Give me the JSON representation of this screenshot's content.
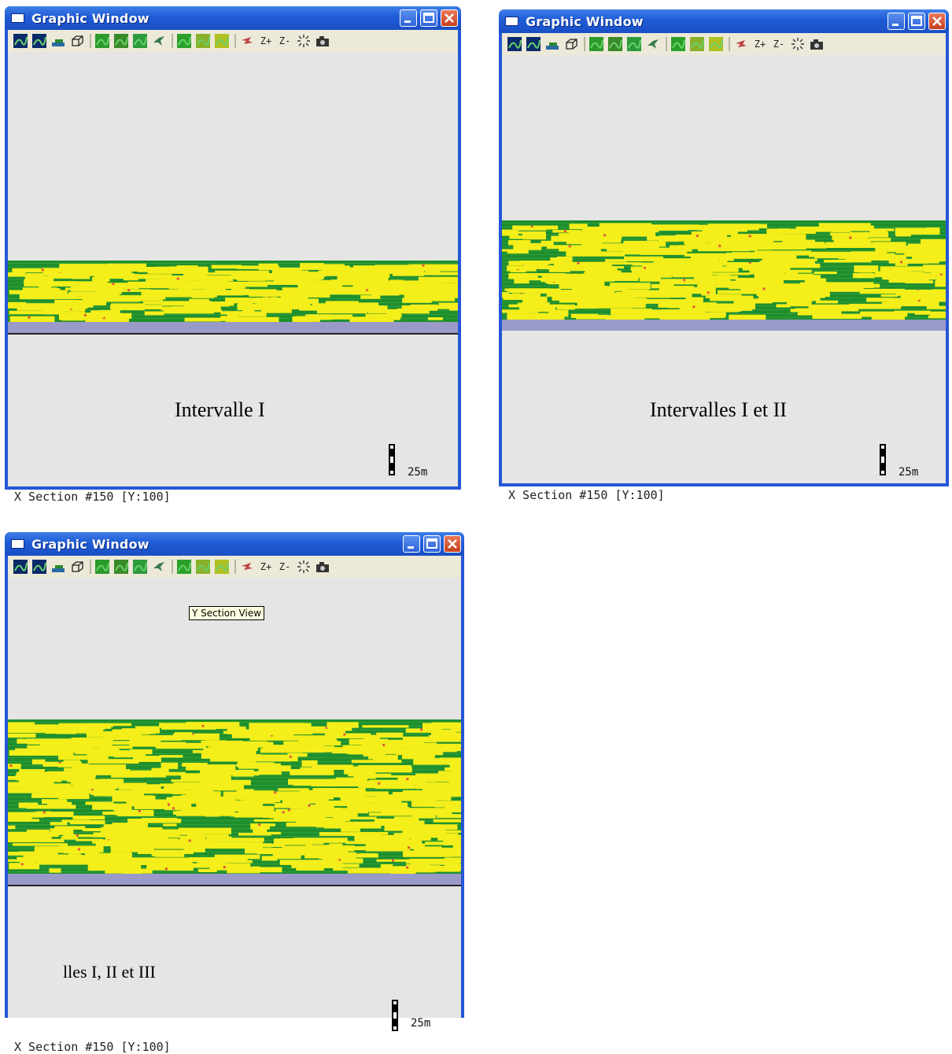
{
  "colors": {
    "titlebar": "#2456d6",
    "sand": "#f4ee1a",
    "shale": "#1f8f2e",
    "shale_light": "#3aa844",
    "base": "#9a9ac8",
    "background": "#e5e5e5"
  },
  "windows": [
    {
      "title": "Graphic Window",
      "caption": "Intervalle I",
      "scale_label": "25m",
      "status": "X Section #150 [Y:100]"
    },
    {
      "title": "Graphic Window",
      "caption": "Intervalles I et II",
      "scale_label": "25m",
      "status": "X Section #150 [Y:100]"
    },
    {
      "title": "Graphic Window",
      "caption": "lles I, II et III",
      "scale_label": "25m",
      "status": "X Section #150 [Y:100]",
      "tooltip": "Y Section View"
    }
  ],
  "toolbar": {
    "zoom_in_label": "Z+",
    "zoom_out_label": "Z-"
  },
  "icons": [
    "model-icon",
    "model-alt-icon",
    "surface-icon",
    "cube-icon",
    "facies-map-icon",
    "facies-map-2-icon",
    "facies-map-3-icon",
    "plane-icon",
    "section-icon",
    "section-2-icon",
    "grid-icon",
    "rotate-icon",
    "zoom-in-icon",
    "zoom-out-icon",
    "fit-icon",
    "camera-icon"
  ]
}
